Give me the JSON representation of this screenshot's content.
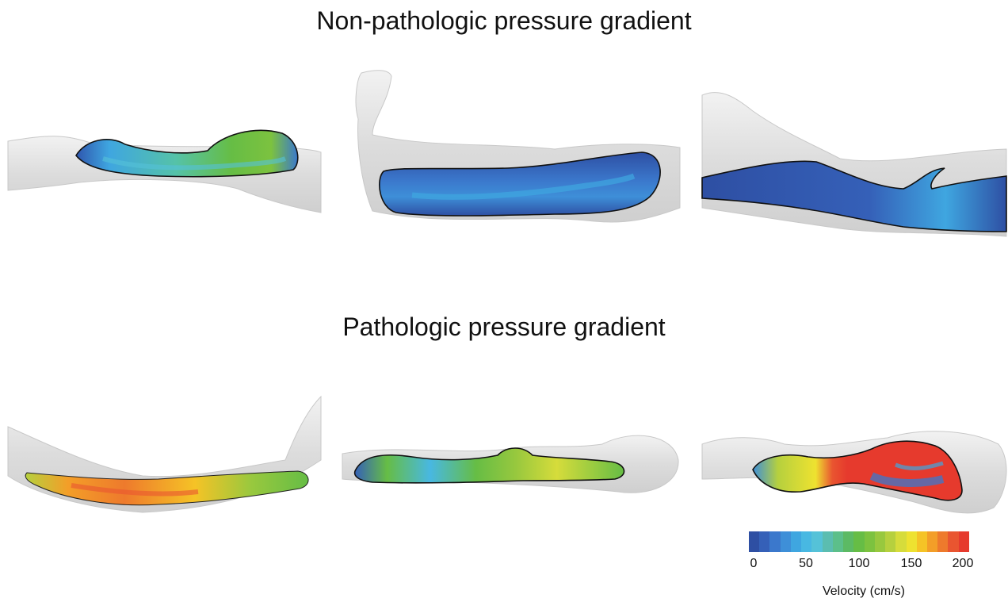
{
  "titles": {
    "top": "Non-pathologic pressure gradient",
    "bottom": "Pathologic pressure gradient"
  },
  "legend": {
    "ticks": [
      "0",
      "50",
      "100",
      "150",
      "200"
    ],
    "label": "Velocity (cm/s)",
    "colors": [
      "#2e4fa3",
      "#3560b8",
      "#3b78cc",
      "#3e8fd8",
      "#3fa6e0",
      "#48b8e2",
      "#55c2d8",
      "#5bbdb0",
      "#5cbf8a",
      "#5cba64",
      "#66bd45",
      "#7cc23f",
      "#98c83e",
      "#b6d03e",
      "#d6dc3b",
      "#eee230",
      "#f5c326",
      "#f39e28",
      "#ee7a2c",
      "#e95530",
      "#e63a2d"
    ]
  }
}
